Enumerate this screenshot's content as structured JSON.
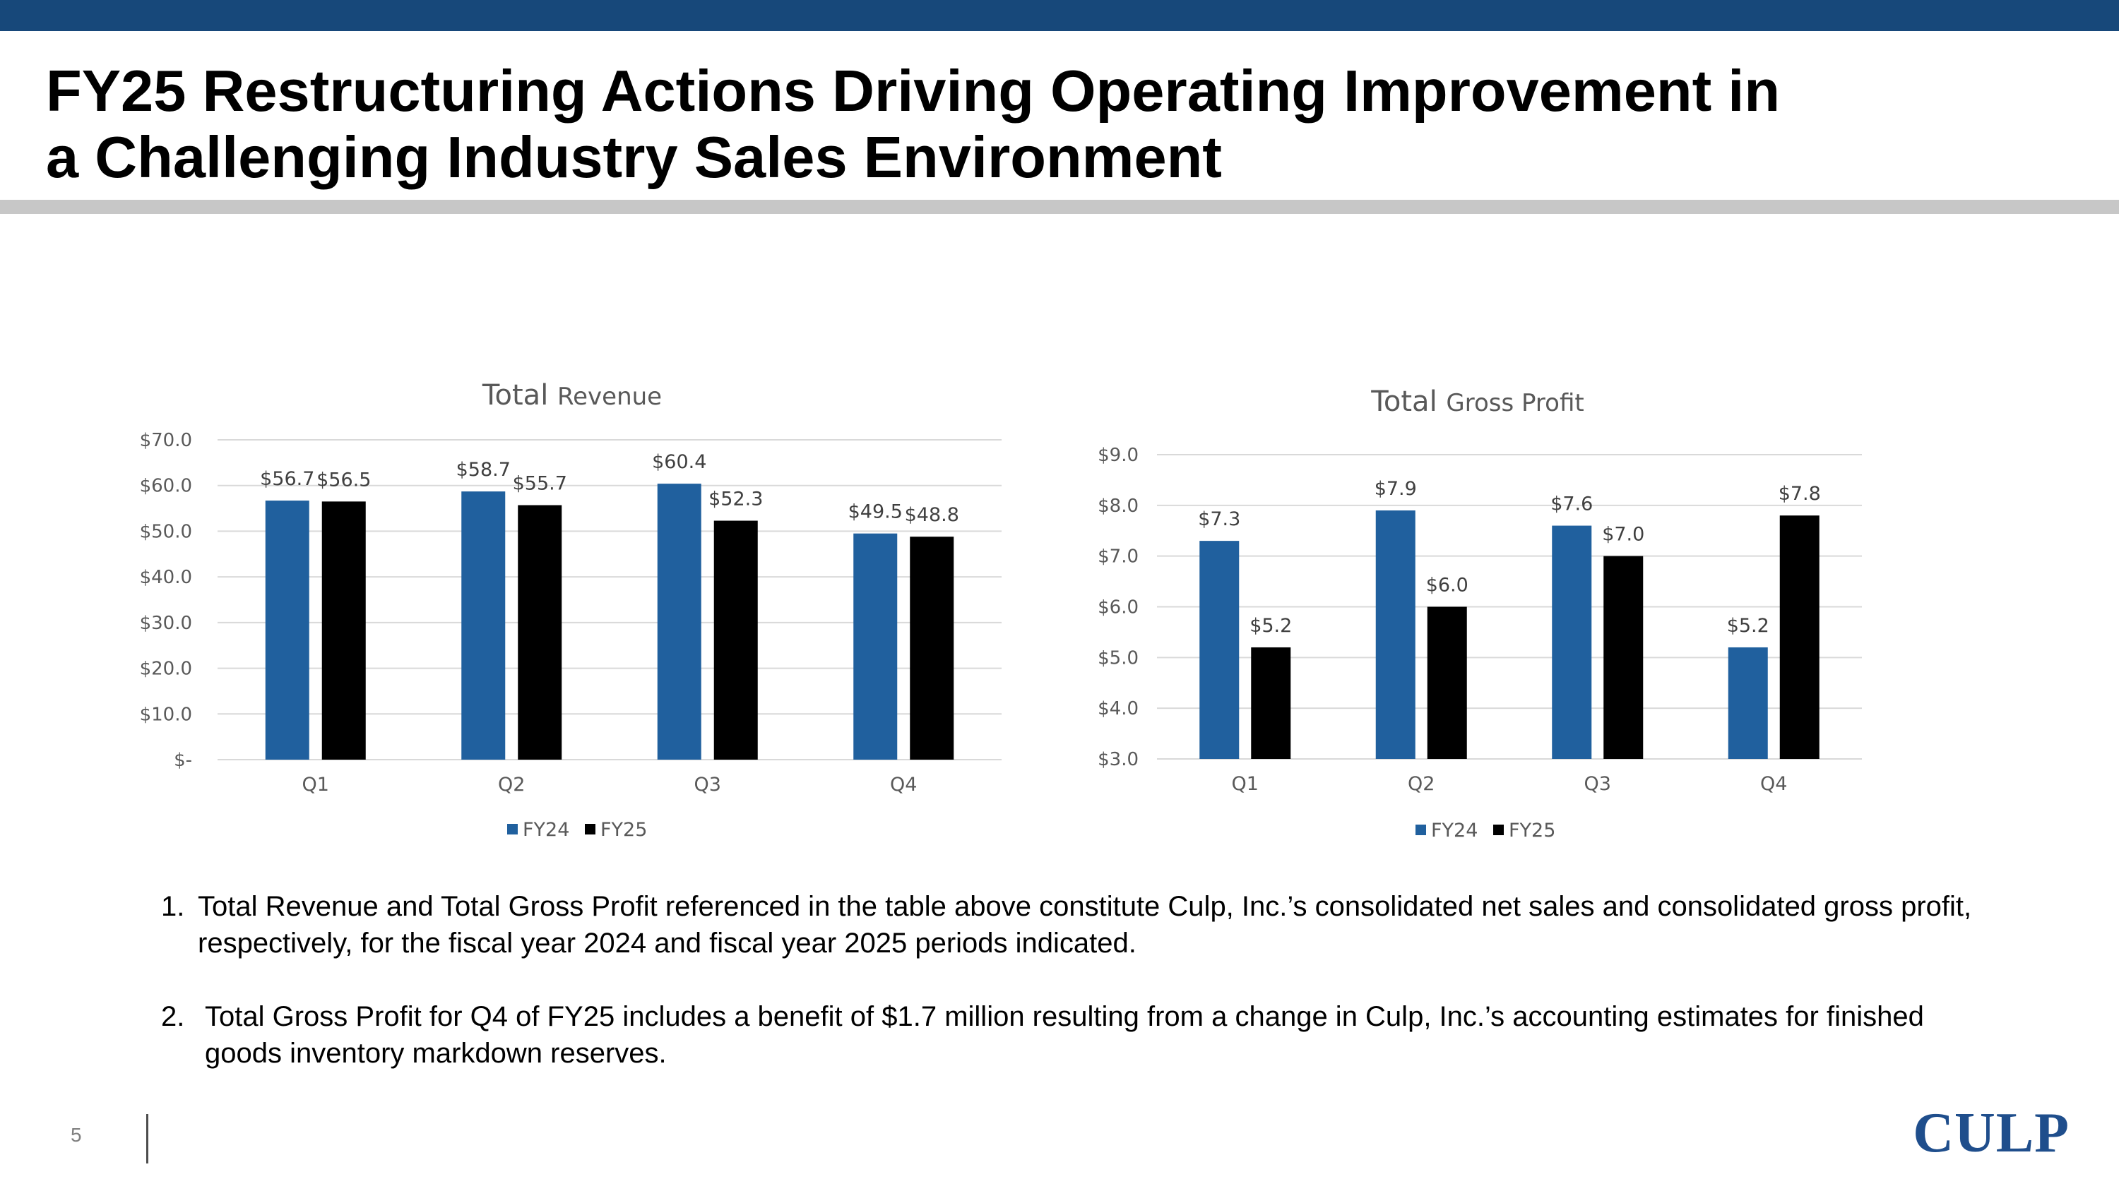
{
  "slide": {
    "title_lines": [
      "FY25 Restructuring Actions Driving Operating Improvement in",
      "a Challenging Industry Sales Environment"
    ],
    "page_number": "5",
    "logo_text": "CULP"
  },
  "colors": {
    "fy24": "#20609e",
    "fy25": "#000000",
    "top_bar": "#17487a",
    "logo": "#1f4e8c"
  },
  "notes": [
    {
      "number": "1.",
      "text": "Total Revenue and Total Gross Profit referenced in the table above constitute Culp, Inc.’s consolidated net sales and consolidated gross profit, respectively, for the fiscal year 2024 and fiscal year 2025 periods indicated."
    },
    {
      "number": "2.",
      "text": "Total Gross Profit for Q4 of FY25 includes a benefit of $1.7 million resulting from a change in Culp, Inc.’s accounting estimates for finished goods inventory markdown reserves."
    }
  ],
  "chart_data": [
    {
      "type": "bar",
      "title_main": "Total",
      "title_sub": "Revenue",
      "categories": [
        "Q1",
        "Q2",
        "Q3",
        "Q4"
      ],
      "series": [
        {
          "name": "FY24",
          "values": [
            56.7,
            58.7,
            60.4,
            49.5
          ],
          "labels": [
            "$56.7",
            "$58.7",
            "$60.4",
            "$49.5"
          ]
        },
        {
          "name": "FY25",
          "values": [
            56.5,
            55.7,
            52.3,
            48.8
          ],
          "labels": [
            "$56.5",
            "$55.7",
            "$52.3",
            "$48.8"
          ]
        }
      ],
      "ylim": [
        0,
        70
      ],
      "yticks": [
        "$-",
        "$10.0",
        "$20.0",
        "$30.0",
        "$40.0",
        "$50.0",
        "$60.0",
        "$70.0"
      ],
      "grid": true,
      "legend": "bottom-center"
    },
    {
      "type": "bar",
      "title_main": "Total",
      "title_sub": "Gross Profit",
      "categories": [
        "Q1",
        "Q2",
        "Q3",
        "Q4"
      ],
      "series": [
        {
          "name": "FY24",
          "values": [
            7.3,
            7.9,
            7.6,
            5.2
          ],
          "labels": [
            "$7.3",
            "$7.9",
            "$7.6",
            "$5.2"
          ]
        },
        {
          "name": "FY25",
          "values": [
            5.2,
            6.0,
            7.0,
            7.8
          ],
          "labels": [
            "$5.2",
            "$6.0",
            "$7.0",
            "$7.8"
          ]
        }
      ],
      "ylim": [
        3,
        9
      ],
      "yticks": [
        "$3.0",
        "$4.0",
        "$5.0",
        "$6.0",
        "$7.0",
        "$8.0",
        "$9.0"
      ],
      "grid": true,
      "legend": "bottom-center"
    }
  ]
}
